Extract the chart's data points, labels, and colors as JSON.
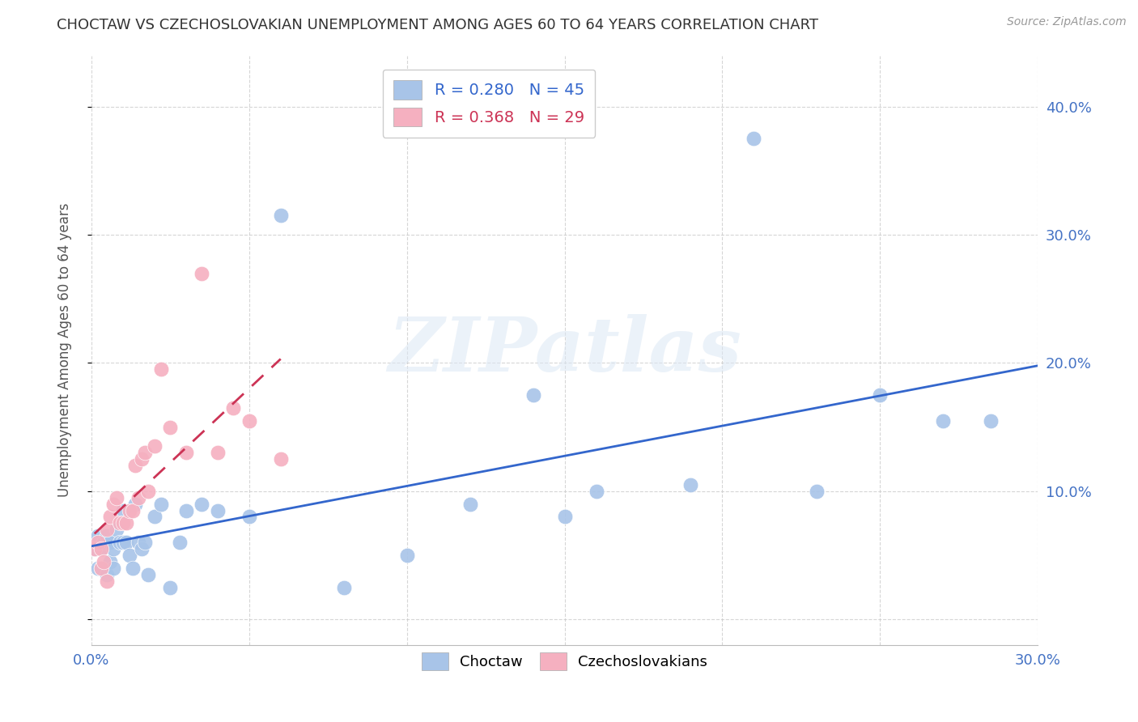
{
  "title": "CHOCTAW VS CZECHOSLOVAKIAN UNEMPLOYMENT AMONG AGES 60 TO 64 YEARS CORRELATION CHART",
  "source": "Source: ZipAtlas.com",
  "ylabel": "Unemployment Among Ages 60 to 64 years",
  "xlim": [
    0.0,
    0.3
  ],
  "ylim": [
    -0.02,
    0.44
  ],
  "xticks": [
    0.0,
    0.05,
    0.1,
    0.15,
    0.2,
    0.25,
    0.3
  ],
  "xtick_labels": [
    "0.0%",
    "",
    "",
    "",
    "",
    "",
    "30.0%"
  ],
  "yticks": [
    0.0,
    0.1,
    0.2,
    0.3,
    0.4
  ],
  "ytick_labels_right": [
    "",
    "10.0%",
    "20.0%",
    "30.0%",
    "40.0%"
  ],
  "choctaw_color": "#a8c4e8",
  "czech_color": "#f5b0c0",
  "choctaw_line_color": "#3366cc",
  "czech_line_color": "#cc3355",
  "watermark_text": "ZIPatlas",
  "choctaw_x": [
    0.001,
    0.002,
    0.002,
    0.003,
    0.003,
    0.004,
    0.005,
    0.005,
    0.006,
    0.006,
    0.007,
    0.007,
    0.008,
    0.009,
    0.01,
    0.01,
    0.011,
    0.012,
    0.013,
    0.014,
    0.015,
    0.016,
    0.017,
    0.018,
    0.02,
    0.022,
    0.025,
    0.028,
    0.03,
    0.035,
    0.04,
    0.05,
    0.06,
    0.08,
    0.1,
    0.12,
    0.14,
    0.15,
    0.16,
    0.19,
    0.21,
    0.23,
    0.25,
    0.27,
    0.285
  ],
  "choctaw_y": [
    0.055,
    0.04,
    0.065,
    0.055,
    0.04,
    0.06,
    0.035,
    0.065,
    0.045,
    0.06,
    0.055,
    0.04,
    0.07,
    0.06,
    0.085,
    0.06,
    0.06,
    0.05,
    0.04,
    0.09,
    0.06,
    0.055,
    0.06,
    0.035,
    0.08,
    0.09,
    0.025,
    0.06,
    0.085,
    0.09,
    0.085,
    0.08,
    0.315,
    0.025,
    0.05,
    0.09,
    0.175,
    0.08,
    0.1,
    0.105,
    0.375,
    0.1,
    0.175,
    0.155,
    0.155
  ],
  "czech_x": [
    0.001,
    0.002,
    0.003,
    0.003,
    0.004,
    0.005,
    0.005,
    0.006,
    0.007,
    0.008,
    0.009,
    0.01,
    0.011,
    0.012,
    0.013,
    0.014,
    0.015,
    0.016,
    0.017,
    0.018,
    0.02,
    0.022,
    0.025,
    0.03,
    0.035,
    0.04,
    0.045,
    0.05,
    0.06
  ],
  "czech_y": [
    0.055,
    0.06,
    0.055,
    0.04,
    0.045,
    0.07,
    0.03,
    0.08,
    0.09,
    0.095,
    0.075,
    0.075,
    0.075,
    0.085,
    0.085,
    0.12,
    0.095,
    0.125,
    0.13,
    0.1,
    0.135,
    0.195,
    0.15,
    0.13,
    0.27,
    0.13,
    0.165,
    0.155,
    0.125
  ]
}
